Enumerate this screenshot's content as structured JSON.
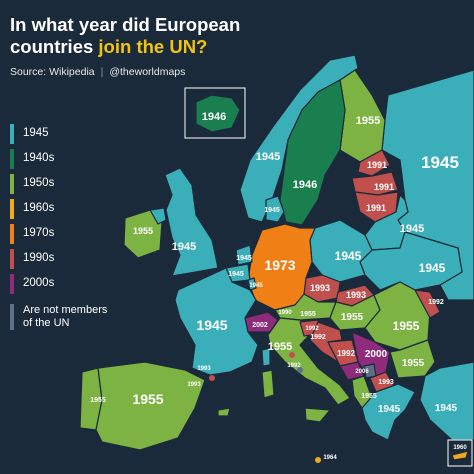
{
  "title": {
    "line1": "In what year did European",
    "line2_plain": "countries ",
    "line2_highlight": "join the UN?"
  },
  "source": {
    "text": "Source: Wikipedia",
    "separator": "|",
    "handle": "@theworldmaps"
  },
  "legend": [
    {
      "label": "1945",
      "color": "#3aafb9"
    },
    {
      "label": "1940s",
      "color": "#1a7f4e"
    },
    {
      "label": "1950s",
      "color": "#7cb342"
    },
    {
      "label": "1960s",
      "color": "#f0a81c"
    },
    {
      "label": "1970s",
      "color": "#f07f16"
    },
    {
      "label": "1990s",
      "color": "#c0504d"
    },
    {
      "label": "2000s",
      "color": "#8e2b7b"
    }
  ],
  "legend_note": "Are not members of the UN",
  "legend_note_color": "#5c6f85",
  "colors": {
    "sea": "#1b2a3a",
    "border": "#1b2a3a"
  },
  "map_labels": {
    "iceland": "1946",
    "norway": "1945",
    "sweden": "1946",
    "finland": "1955",
    "russia": "1945",
    "estonia": "1991",
    "latvia": "1991",
    "lithuania": "1991",
    "belarus": "1945",
    "ukraine": "1945",
    "poland": "1945",
    "germany": "1973",
    "denmark": "1945",
    "netherlands": "1945",
    "belgium": "1945",
    "luxembourg": "1945",
    "uk": "1945",
    "ireland": "1955",
    "france": "1945",
    "switzerland": "2002",
    "liechtenstein": "1990",
    "austria": "1955",
    "czechia": "1993",
    "slovakia": "1993",
    "hungary": "1955",
    "moldova": "1992",
    "romania": "1955",
    "slovenia": "1992",
    "croatia": "1992",
    "bosnia": "1992",
    "serbia": "2000",
    "montenegro": "2006",
    "north_macedonia": "1993",
    "albania": "1955",
    "bulgaria": "1955",
    "greece": "1945",
    "turkey": "1945",
    "italy": "1955",
    "san_marino": "1992",
    "monaco": "1993",
    "andorra": "1993",
    "portugal": "1955",
    "spain": "1955",
    "malta": "1964",
    "cyprus": "1960"
  }
}
